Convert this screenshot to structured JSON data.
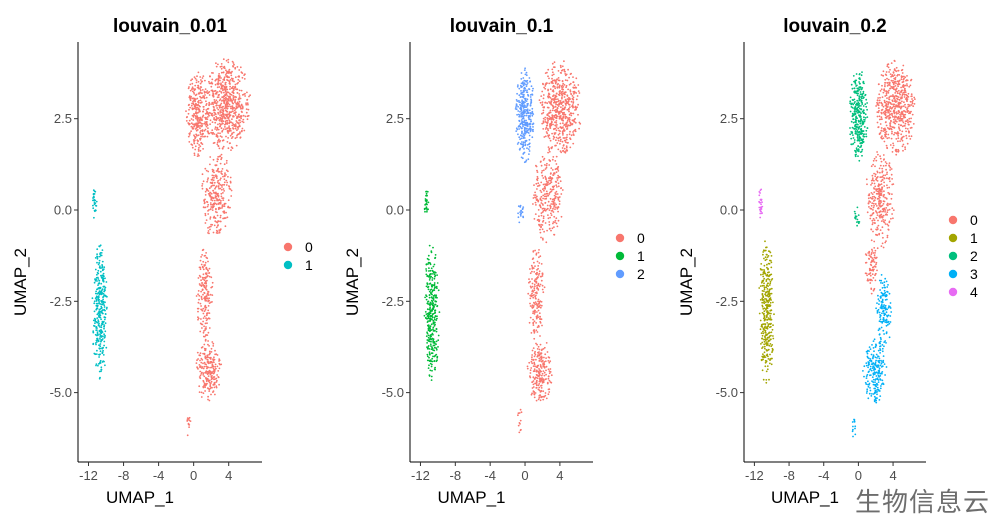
{
  "figure": {
    "watermark": "生物信息云"
  },
  "chart_data": [
    {
      "type": "scatter",
      "title": "louvain_0.01",
      "xlabel": "UMAP_1",
      "ylabel": "UMAP_2",
      "xticks": [
        -12,
        -8,
        -4,
        0,
        4
      ],
      "yticks": [
        -5.0,
        -2.5,
        0.0,
        2.5
      ],
      "ytick_labels": [
        "-5.0",
        "-2.5",
        "0.0",
        "2.5"
      ],
      "xlim": [
        -13.2,
        7.8
      ],
      "ylim": [
        -6.9,
        4.6
      ],
      "legend": [
        "0",
        "1"
      ],
      "colors": [
        "#F8766D",
        "#00BFC4"
      ],
      "clusters": [
        {
          "name": "0",
          "color": "#F8766D",
          "regions": [
            {
              "shape": "ellipse",
              "cx": 3.8,
              "cy": 2.9,
              "rx": 2.7,
              "ry": 1.3,
              "n": 650
            },
            {
              "shape": "ellipse",
              "cx": 0.5,
              "cy": 2.6,
              "rx": 1.4,
              "ry": 1.2,
              "n": 300
            },
            {
              "shape": "ellipse",
              "cx": 2.6,
              "cy": 0.4,
              "rx": 1.8,
              "ry": 1.3,
              "n": 280
            },
            {
              "shape": "ellipse",
              "cx": 1.3,
              "cy": -2.3,
              "rx": 1.0,
              "ry": 1.3,
              "n": 180
            },
            {
              "shape": "ellipse",
              "cx": 1.7,
              "cy": -4.4,
              "rx": 1.5,
              "ry": 0.9,
              "n": 220
            },
            {
              "shape": "ellipse",
              "cx": -0.6,
              "cy": -5.9,
              "rx": 0.3,
              "ry": 0.5,
              "n": 12
            }
          ]
        },
        {
          "name": "1",
          "color": "#00BFC4",
          "regions": [
            {
              "shape": "ellipse",
              "cx": -10.7,
              "cy": -2.8,
              "rx": 0.9,
              "ry": 1.9,
              "n": 330
            },
            {
              "shape": "ellipse",
              "cx": -11.3,
              "cy": 0.2,
              "rx": 0.25,
              "ry": 0.45,
              "n": 30
            }
          ]
        }
      ]
    },
    {
      "type": "scatter",
      "title": "louvain_0.1",
      "xlabel": "UMAP_1",
      "ylabel": "UMAP_2",
      "xticks": [
        -12,
        -8,
        -4,
        0,
        4
      ],
      "yticks": [
        -5.0,
        -2.5,
        0.0,
        2.5
      ],
      "ytick_labels": [
        "-5.0",
        "-2.5",
        "0.0",
        "2.5"
      ],
      "xlim": [
        -13.2,
        7.8
      ],
      "ylim": [
        -6.9,
        4.6
      ],
      "legend": [
        "0",
        "1",
        "2"
      ],
      "colors": [
        "#F8766D",
        "#00BA38",
        "#619CFF"
      ],
      "clusters": [
        {
          "name": "0",
          "color": "#F8766D",
          "regions": [
            {
              "shape": "ellipse",
              "cx": 4.0,
              "cy": 2.8,
              "rx": 2.5,
              "ry": 1.3,
              "n": 560
            },
            {
              "shape": "ellipse",
              "cx": 2.6,
              "cy": 0.4,
              "rx": 1.8,
              "ry": 1.3,
              "n": 280
            },
            {
              "shape": "ellipse",
              "cx": 1.3,
              "cy": -2.3,
              "rx": 1.0,
              "ry": 1.3,
              "n": 180
            },
            {
              "shape": "ellipse",
              "cx": 1.7,
              "cy": -4.4,
              "rx": 1.5,
              "ry": 0.9,
              "n": 220
            },
            {
              "shape": "ellipse",
              "cx": -0.6,
              "cy": -5.9,
              "rx": 0.3,
              "ry": 0.5,
              "n": 12
            }
          ]
        },
        {
          "name": "1",
          "color": "#00BA38",
          "regions": [
            {
              "shape": "ellipse",
              "cx": -10.7,
              "cy": -2.8,
              "rx": 0.9,
              "ry": 1.9,
              "n": 330
            },
            {
              "shape": "ellipse",
              "cx": -11.3,
              "cy": 0.2,
              "rx": 0.25,
              "ry": 0.45,
              "n": 30
            }
          ]
        },
        {
          "name": "2",
          "color": "#619CFF",
          "regions": [
            {
              "shape": "ellipse",
              "cx": 0.0,
              "cy": 2.6,
              "rx": 1.1,
              "ry": 1.3,
              "n": 330
            },
            {
              "shape": "ellipse",
              "cx": -0.5,
              "cy": -0.1,
              "rx": 0.45,
              "ry": 0.3,
              "n": 20
            }
          ]
        }
      ]
    },
    {
      "type": "scatter",
      "title": "louvain_0.2",
      "xlabel": "UMAP_1",
      "ylabel": "UMAP_2",
      "xticks": [
        -12,
        -8,
        -4,
        0,
        4
      ],
      "yticks": [
        -5.0,
        -2.5,
        0.0,
        2.5
      ],
      "ytick_labels": [
        "-5.0",
        "-2.5",
        "0.0",
        "2.5"
      ],
      "xlim": [
        -13.2,
        7.8
      ],
      "ylim": [
        -6.9,
        4.6
      ],
      "legend": [
        "0",
        "1",
        "2",
        "3",
        "4"
      ],
      "colors": [
        "#F8766D",
        "#A3A500",
        "#00BF7D",
        "#00B0F6",
        "#E76BF3"
      ],
      "clusters": [
        {
          "name": "0",
          "color": "#F8766D",
          "regions": [
            {
              "shape": "ellipse",
              "cx": 4.3,
              "cy": 2.8,
              "rx": 2.3,
              "ry": 1.3,
              "n": 560
            },
            {
              "shape": "ellipse",
              "cx": 2.5,
              "cy": 0.3,
              "rx": 1.7,
              "ry": 1.4,
              "n": 300
            },
            {
              "shape": "ellipse",
              "cx": 1.5,
              "cy": -1.6,
              "rx": 0.8,
              "ry": 0.7,
              "n": 80
            }
          ]
        },
        {
          "name": "1",
          "color": "#A3A500",
          "regions": [
            {
              "shape": "ellipse",
              "cx": -10.6,
              "cy": -2.8,
              "rx": 0.9,
              "ry": 2.0,
              "n": 340
            }
          ]
        },
        {
          "name": "2",
          "color": "#00BF7D",
          "regions": [
            {
              "shape": "ellipse",
              "cx": 0.0,
              "cy": 2.6,
              "rx": 1.1,
              "ry": 1.3,
              "n": 320
            },
            {
              "shape": "ellipse",
              "cx": -0.2,
              "cy": -0.2,
              "rx": 0.4,
              "ry": 0.3,
              "n": 15
            }
          ]
        },
        {
          "name": "3",
          "color": "#00B0F6",
          "regions": [
            {
              "shape": "ellipse",
              "cx": 2.9,
              "cy": -2.8,
              "rx": 0.9,
              "ry": 1.1,
              "n": 140
            },
            {
              "shape": "ellipse",
              "cx": 1.9,
              "cy": -4.4,
              "rx": 1.4,
              "ry": 0.9,
              "n": 200
            },
            {
              "shape": "ellipse",
              "cx": -0.5,
              "cy": -5.9,
              "rx": 0.3,
              "ry": 0.5,
              "n": 12
            }
          ]
        },
        {
          "name": "4",
          "color": "#E76BF3",
          "regions": [
            {
              "shape": "ellipse",
              "cx": -11.3,
              "cy": 0.2,
              "rx": 0.25,
              "ry": 0.45,
              "n": 30
            }
          ]
        }
      ]
    }
  ]
}
